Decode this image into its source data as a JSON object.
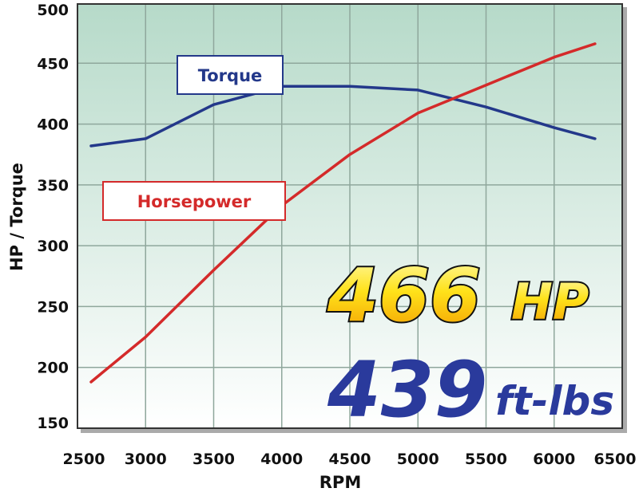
{
  "chart_data": {
    "type": "line",
    "title": "",
    "xlabel": "RPM",
    "ylabel": "HP / Torque",
    "xlim": [
      2500,
      6500
    ],
    "ylim": [
      150,
      500
    ],
    "xticks": [
      "2500",
      "3000",
      "3500",
      "4000",
      "4500",
      "5000",
      "5500",
      "6000",
      "6500"
    ],
    "yticks": [
      "150",
      "200",
      "250",
      "300",
      "350",
      "400",
      "450",
      "500"
    ],
    "grid": true,
    "series": [
      {
        "name": "Torque",
        "color": "#23388a",
        "x": [
          2600,
          3000,
          3500,
          4000,
          4500,
          5000,
          5500,
          6000,
          6300
        ],
        "y": [
          382,
          388,
          416,
          431,
          431,
          428,
          414,
          397,
          388
        ]
      },
      {
        "name": "Horsepower",
        "color": "#d42a2a",
        "x": [
          2600,
          3000,
          3500,
          4000,
          4500,
          5000,
          5500,
          6000,
          6300
        ],
        "y": [
          188,
          225,
          280,
          333,
          375,
          409,
          432,
          455,
          466
        ]
      }
    ],
    "annotations": {
      "hp_value": "466",
      "hp_unit": "HP",
      "torque_value": "439",
      "torque_unit": "ft-lbs"
    },
    "colors": {
      "plot_bg_top": "#b9dccb",
      "plot_bg_bottom": "#ffffff",
      "hp_text": "#f5c400",
      "torque_text": "#2a3a9c"
    }
  }
}
